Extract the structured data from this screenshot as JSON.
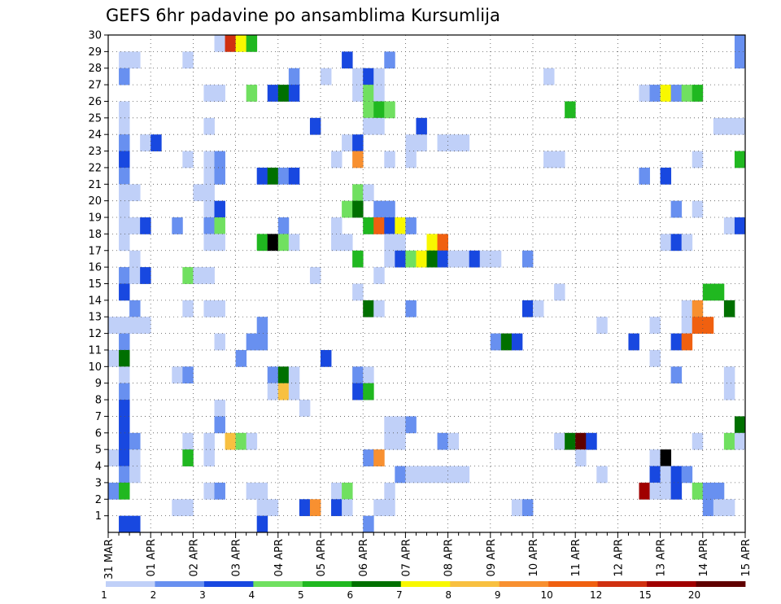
{
  "chart_data": {
    "type": "heatmap",
    "title": "GEFS 6hr padavine po ansamblima Kursumlija",
    "x_labels": [
      "31 MAR",
      "01 APR",
      "02 APR",
      "03 APR",
      "04 APR",
      "05 APR",
      "06 APR",
      "07 APR",
      "08 APR",
      "09 APR",
      "10 APR",
      "11 APR",
      "12 APR",
      "13 APR",
      "14 APR",
      "15 APR"
    ],
    "y_ticks": [
      1,
      2,
      3,
      4,
      5,
      6,
      7,
      8,
      9,
      10,
      11,
      12,
      13,
      14,
      15,
      16,
      17,
      18,
      19,
      20,
      21,
      22,
      23,
      24,
      25,
      26,
      27,
      28,
      29,
      30
    ],
    "y_range": [
      0,
      30
    ],
    "x_steps": 60,
    "steps_per_day": 4,
    "grid": "dotted",
    "colorbar": {
      "levels": [
        1,
        2,
        3,
        4,
        5,
        6,
        7,
        8,
        9,
        10,
        12,
        15,
        20
      ],
      "colors": [
        "#c0d0f8",
        "#6890f0",
        "#1848e0",
        "#70e060",
        "#20b820",
        "#007000",
        "#f8f800",
        "#f8c040",
        "#f89030",
        "#f06010",
        "#d03010",
        "#a00000",
        "#600000"
      ],
      "tick_labels": [
        "1",
        "2",
        "3",
        "4",
        "5",
        "6",
        "7",
        "8",
        "9",
        "10",
        "12",
        "15",
        "20"
      ]
    },
    "cells": [
      [
        30,
        10,
        1
      ],
      [
        30,
        11,
        11
      ],
      [
        30,
        12,
        7
      ],
      [
        30,
        13,
        5
      ],
      [
        30,
        59,
        2
      ],
      [
        29,
        1,
        1
      ],
      [
        29,
        2,
        1
      ],
      [
        29,
        7,
        1
      ],
      [
        29,
        22,
        3
      ],
      [
        29,
        26,
        2
      ],
      [
        29,
        59,
        2
      ],
      [
        28,
        1,
        2
      ],
      [
        28,
        17,
        2
      ],
      [
        28,
        20,
        1
      ],
      [
        28,
        23,
        1
      ],
      [
        28,
        24,
        3
      ],
      [
        28,
        25,
        1
      ],
      [
        28,
        41,
        1
      ],
      [
        27,
        9,
        1
      ],
      [
        27,
        10,
        1
      ],
      [
        27,
        13,
        4
      ],
      [
        27,
        15,
        3
      ],
      [
        27,
        16,
        6
      ],
      [
        27,
        17,
        3
      ],
      [
        27,
        23,
        1
      ],
      [
        27,
        24,
        4
      ],
      [
        27,
        25,
        1
      ],
      [
        27,
        50,
        1
      ],
      [
        27,
        51,
        2
      ],
      [
        27,
        52,
        7
      ],
      [
        27,
        53,
        2
      ],
      [
        27,
        54,
        4
      ],
      [
        27,
        55,
        5
      ],
      [
        26,
        1,
        1
      ],
      [
        26,
        24,
        4
      ],
      [
        26,
        25,
        5
      ],
      [
        26,
        26,
        4
      ],
      [
        26,
        43,
        5
      ],
      [
        25,
        1,
        1
      ],
      [
        25,
        9,
        1
      ],
      [
        25,
        19,
        3
      ],
      [
        25,
        24,
        1
      ],
      [
        25,
        25,
        1
      ],
      [
        25,
        29,
        3
      ],
      [
        25,
        57,
        1
      ],
      [
        25,
        58,
        1
      ],
      [
        25,
        59,
        1
      ],
      [
        24,
        1,
        2
      ],
      [
        24,
        3,
        1
      ],
      [
        24,
        4,
        3
      ],
      [
        24,
        22,
        1
      ],
      [
        24,
        23,
        3
      ],
      [
        24,
        28,
        1
      ],
      [
        24,
        29,
        1
      ],
      [
        24,
        31,
        1
      ],
      [
        24,
        32,
        1
      ],
      [
        24,
        33,
        1
      ],
      [
        23,
        1,
        3
      ],
      [
        23,
        7,
        1
      ],
      [
        23,
        9,
        1
      ],
      [
        23,
        10,
        2
      ],
      [
        23,
        21,
        1
      ],
      [
        23,
        23,
        9
      ],
      [
        23,
        26,
        1
      ],
      [
        23,
        28,
        1
      ],
      [
        23,
        41,
        1
      ],
      [
        23,
        42,
        1
      ],
      [
        23,
        55,
        1
      ],
      [
        23,
        59,
        5
      ],
      [
        22,
        1,
        2
      ],
      [
        22,
        9,
        1
      ],
      [
        22,
        10,
        2
      ],
      [
        22,
        14,
        3
      ],
      [
        22,
        15,
        6
      ],
      [
        22,
        16,
        2
      ],
      [
        22,
        17,
        3
      ],
      [
        22,
        50,
        2
      ],
      [
        22,
        52,
        3
      ],
      [
        21,
        1,
        1
      ],
      [
        21,
        2,
        1
      ],
      [
        21,
        8,
        1
      ],
      [
        21,
        9,
        1
      ],
      [
        21,
        23,
        4
      ],
      [
        21,
        24,
        1
      ],
      [
        20,
        1,
        1
      ],
      [
        20,
        9,
        1
      ],
      [
        20,
        10,
        3
      ],
      [
        20,
        22,
        4
      ],
      [
        20,
        23,
        6
      ],
      [
        20,
        25,
        2
      ],
      [
        20,
        26,
        2
      ],
      [
        20,
        53,
        2
      ],
      [
        20,
        55,
        1
      ],
      [
        19,
        1,
        1
      ],
      [
        19,
        2,
        1
      ],
      [
        19,
        3,
        3
      ],
      [
        19,
        6,
        2
      ],
      [
        19,
        9,
        2
      ],
      [
        19,
        10,
        4
      ],
      [
        19,
        16,
        2
      ],
      [
        19,
        21,
        1
      ],
      [
        19,
        24,
        5
      ],
      [
        19,
        25,
        10
      ],
      [
        19,
        26,
        3
      ],
      [
        19,
        27,
        7
      ],
      [
        19,
        28,
        2
      ],
      [
        19,
        58,
        1
      ],
      [
        19,
        59,
        3
      ],
      [
        18,
        1,
        1
      ],
      [
        18,
        9,
        1
      ],
      [
        18,
        10,
        1
      ],
      [
        18,
        14,
        5
      ],
      [
        18,
        15,
        15
      ],
      [
        18,
        16,
        4
      ],
      [
        18,
        17,
        1
      ],
      [
        18,
        21,
        1
      ],
      [
        18,
        22,
        1
      ],
      [
        18,
        26,
        1
      ],
      [
        18,
        27,
        1
      ],
      [
        18,
        30,
        7
      ],
      [
        18,
        31,
        10
      ],
      [
        18,
        52,
        1
      ],
      [
        18,
        53,
        3
      ],
      [
        18,
        54,
        1
      ],
      [
        17,
        2,
        1
      ],
      [
        17,
        23,
        5
      ],
      [
        17,
        26,
        1
      ],
      [
        17,
        27,
        3
      ],
      [
        17,
        28,
        4
      ],
      [
        17,
        29,
        7
      ],
      [
        17,
        30,
        6
      ],
      [
        17,
        31,
        3
      ],
      [
        17,
        32,
        1
      ],
      [
        17,
        33,
        1
      ],
      [
        17,
        34,
        3
      ],
      [
        17,
        35,
        1
      ],
      [
        17,
        36,
        1
      ],
      [
        17,
        39,
        2
      ],
      [
        16,
        1,
        2
      ],
      [
        16,
        2,
        1
      ],
      [
        16,
        3,
        3
      ],
      [
        16,
        7,
        4
      ],
      [
        16,
        8,
        1
      ],
      [
        16,
        9,
        1
      ],
      [
        16,
        19,
        1
      ],
      [
        16,
        25,
        1
      ],
      [
        15,
        1,
        3
      ],
      [
        15,
        23,
        1
      ],
      [
        15,
        42,
        1
      ],
      [
        15,
        56,
        5
      ],
      [
        15,
        57,
        5
      ],
      [
        14,
        2,
        2
      ],
      [
        14,
        7,
        1
      ],
      [
        14,
        9,
        1
      ],
      [
        14,
        10,
        1
      ],
      [
        14,
        24,
        6
      ],
      [
        14,
        25,
        1
      ],
      [
        14,
        28,
        2
      ],
      [
        14,
        39,
        3
      ],
      [
        14,
        40,
        1
      ],
      [
        14,
        54,
        1
      ],
      [
        14,
        55,
        9
      ],
      [
        14,
        58,
        6
      ],
      [
        13,
        0,
        1
      ],
      [
        13,
        1,
        1
      ],
      [
        13,
        2,
        1
      ],
      [
        13,
        3,
        1
      ],
      [
        13,
        14,
        2
      ],
      [
        13,
        46,
        1
      ],
      [
        13,
        51,
        1
      ],
      [
        13,
        54,
        1
      ],
      [
        13,
        55,
        10
      ],
      [
        13,
        56,
        10
      ],
      [
        12,
        1,
        2
      ],
      [
        12,
        10,
        1
      ],
      [
        12,
        13,
        2
      ],
      [
        12,
        14,
        2
      ],
      [
        12,
        36,
        2
      ],
      [
        12,
        37,
        6
      ],
      [
        12,
        38,
        3
      ],
      [
        12,
        49,
        3
      ],
      [
        12,
        53,
        3
      ],
      [
        12,
        54,
        10
      ],
      [
        11,
        0,
        1
      ],
      [
        11,
        1,
        6
      ],
      [
        11,
        12,
        2
      ],
      [
        11,
        20,
        3
      ],
      [
        11,
        51,
        1
      ],
      [
        10,
        1,
        1
      ],
      [
        10,
        6,
        1
      ],
      [
        10,
        7,
        2
      ],
      [
        10,
        15,
        2
      ],
      [
        10,
        16,
        6
      ],
      [
        10,
        17,
        1
      ],
      [
        10,
        23,
        2
      ],
      [
        10,
        24,
        1
      ],
      [
        10,
        53,
        2
      ],
      [
        10,
        58,
        1
      ],
      [
        9,
        1,
        2
      ],
      [
        9,
        15,
        1
      ],
      [
        9,
        16,
        8
      ],
      [
        9,
        17,
        1
      ],
      [
        9,
        23,
        3
      ],
      [
        9,
        24,
        5
      ],
      [
        9,
        58,
        1
      ],
      [
        8,
        1,
        3
      ],
      [
        8,
        10,
        1
      ],
      [
        8,
        18,
        1
      ],
      [
        7,
        1,
        3
      ],
      [
        7,
        10,
        2
      ],
      [
        7,
        26,
        1
      ],
      [
        7,
        27,
        1
      ],
      [
        7,
        28,
        2
      ],
      [
        7,
        59,
        6
      ],
      [
        6,
        1,
        3
      ],
      [
        6,
        2,
        2
      ],
      [
        6,
        7,
        1
      ],
      [
        6,
        9,
        1
      ],
      [
        6,
        11,
        8
      ],
      [
        6,
        12,
        4
      ],
      [
        6,
        13,
        1
      ],
      [
        6,
        26,
        1
      ],
      [
        6,
        27,
        1
      ],
      [
        6,
        31,
        2
      ],
      [
        6,
        32,
        1
      ],
      [
        6,
        42,
        1
      ],
      [
        6,
        43,
        6
      ],
      [
        6,
        44,
        13
      ],
      [
        6,
        45,
        3
      ],
      [
        6,
        55,
        1
      ],
      [
        6,
        58,
        4
      ],
      [
        6,
        59,
        1
      ],
      [
        5,
        0,
        1
      ],
      [
        5,
        1,
        3
      ],
      [
        5,
        2,
        1
      ],
      [
        5,
        7,
        5
      ],
      [
        5,
        9,
        1
      ],
      [
        5,
        24,
        2
      ],
      [
        5,
        25,
        9
      ],
      [
        5,
        44,
        1
      ],
      [
        5,
        51,
        1
      ],
      [
        5,
        52,
        14
      ],
      [
        4,
        1,
        2
      ],
      [
        4,
        2,
        1
      ],
      [
        4,
        27,
        2
      ],
      [
        4,
        28,
        1
      ],
      [
        4,
        29,
        1
      ],
      [
        4,
        30,
        1
      ],
      [
        4,
        31,
        1
      ],
      [
        4,
        32,
        1
      ],
      [
        4,
        33,
        1
      ],
      [
        4,
        46,
        1
      ],
      [
        4,
        51,
        3
      ],
      [
        4,
        52,
        1
      ],
      [
        4,
        53,
        3
      ],
      [
        4,
        54,
        2
      ],
      [
        3,
        0,
        2
      ],
      [
        3,
        1,
        5
      ],
      [
        3,
        9,
        1
      ],
      [
        3,
        10,
        2
      ],
      [
        3,
        13,
        1
      ],
      [
        3,
        14,
        1
      ],
      [
        3,
        21,
        1
      ],
      [
        3,
        22,
        4
      ],
      [
        3,
        26,
        1
      ],
      [
        3,
        50,
        12
      ],
      [
        3,
        51,
        1
      ],
      [
        3,
        52,
        1
      ],
      [
        3,
        53,
        3
      ],
      [
        3,
        55,
        4
      ],
      [
        3,
        56,
        2
      ],
      [
        3,
        57,
        2
      ],
      [
        2,
        6,
        1
      ],
      [
        2,
        7,
        1
      ],
      [
        2,
        14,
        1
      ],
      [
        2,
        15,
        1
      ],
      [
        2,
        18,
        3
      ],
      [
        2,
        19,
        9
      ],
      [
        2,
        21,
        3
      ],
      [
        2,
        22,
        1
      ],
      [
        2,
        25,
        1
      ],
      [
        2,
        26,
        1
      ],
      [
        2,
        38,
        1
      ],
      [
        2,
        39,
        2
      ],
      [
        2,
        56,
        2
      ],
      [
        2,
        57,
        1
      ],
      [
        2,
        58,
        1
      ],
      [
        1,
        1,
        3
      ],
      [
        1,
        2,
        3
      ],
      [
        1,
        14,
        3
      ],
      [
        1,
        24,
        2
      ]
    ]
  }
}
